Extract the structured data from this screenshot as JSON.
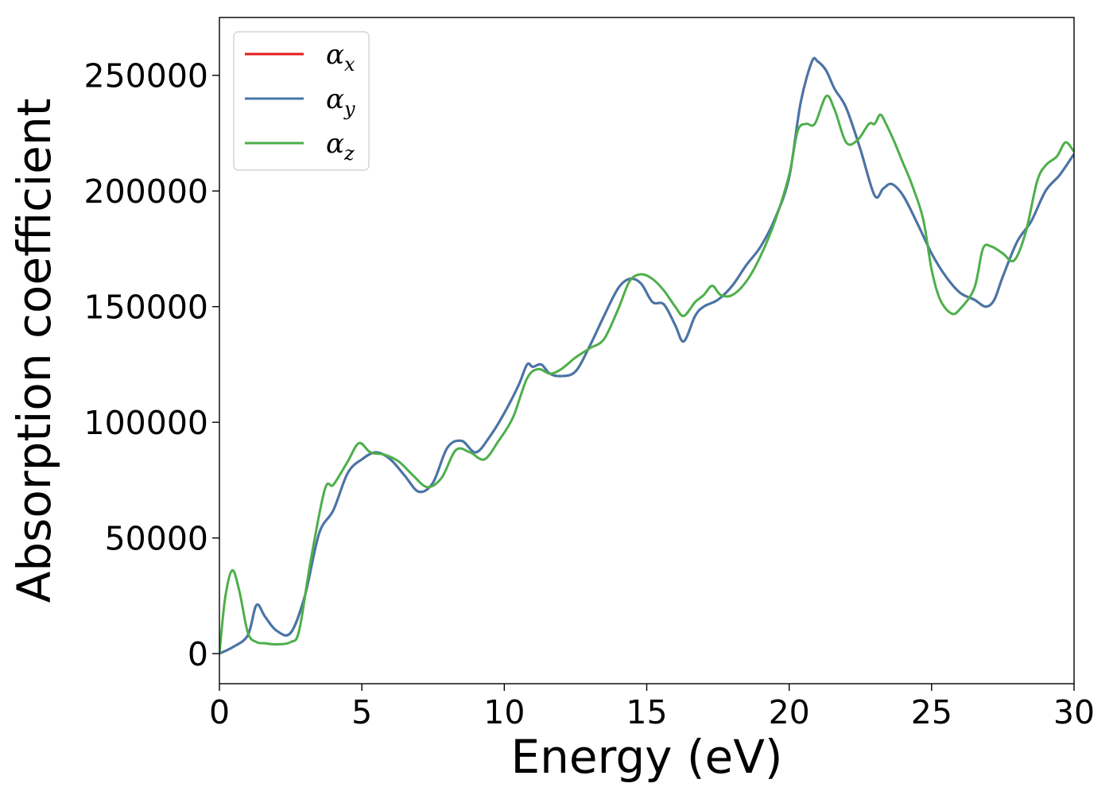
{
  "chart_data": {
    "type": "line",
    "xlabel": "Energy (eV)",
    "ylabel": "Absorption coefficient",
    "xlim": [
      0,
      30
    ],
    "ylim": [
      -13000,
      275000
    ],
    "xticks": [
      0,
      5,
      10,
      15,
      20,
      25,
      30
    ],
    "xtick_labels": [
      "0",
      "5",
      "10",
      "15",
      "20",
      "25",
      "30"
    ],
    "yticks": [
      0,
      50000,
      100000,
      150000,
      200000,
      250000
    ],
    "ytick_labels": [
      "0",
      "50000",
      "100000",
      "150000",
      "200000",
      "250000"
    ],
    "grid": false,
    "legend_position": "top-left",
    "series": [
      {
        "name": "α",
        "subscript": "x",
        "color": "#e41a1c",
        "x": [
          0,
          0.5,
          1.0,
          1.3,
          1.6,
          2.0,
          2.5,
          3.0,
          3.5,
          4.0,
          4.5,
          5.0,
          5.5,
          6.0,
          6.5,
          7.0,
          7.5,
          8.0,
          8.5,
          9.0,
          9.5,
          10.0,
          10.5,
          10.8,
          11.0,
          11.3,
          11.6,
          12.0,
          12.5,
          13.0,
          13.5,
          14.0,
          14.4,
          14.8,
          15.2,
          15.6,
          16.0,
          16.3,
          16.7,
          17.0,
          17.5,
          18.0,
          18.5,
          19.0,
          19.5,
          20.0,
          20.4,
          20.8,
          21.0,
          21.3,
          21.6,
          22.0,
          22.5,
          23.0,
          23.3,
          23.6,
          24.0,
          24.5,
          25.0,
          25.5,
          26.0,
          26.5,
          26.9,
          27.2,
          27.5,
          28.0,
          28.5,
          29.0,
          29.5,
          30.0
        ],
        "y": [
          0,
          3000,
          8000,
          21000,
          16000,
          10000,
          9000,
          25000,
          52000,
          62000,
          78000,
          84000,
          87000,
          84000,
          77000,
          70000,
          74000,
          89000,
          92000,
          87000,
          94000,
          104000,
          116000,
          125000,
          124000,
          125000,
          121000,
          120000,
          122000,
          133000,
          146000,
          158000,
          162000,
          160000,
          152000,
          151000,
          142000,
          135000,
          146000,
          150000,
          153000,
          159000,
          168000,
          176000,
          188000,
          206000,
          238000,
          256000,
          256000,
          252000,
          244000,
          236000,
          218000,
          198000,
          201000,
          203000,
          198000,
          186000,
          173000,
          163000,
          156000,
          153000,
          150000,
          153000,
          163000,
          178000,
          187000,
          200000,
          207000,
          216000
        ]
      },
      {
        "name": "α",
        "subscript": "y",
        "color": "#4477aa",
        "x": [
          0,
          0.5,
          1.0,
          1.3,
          1.6,
          2.0,
          2.5,
          3.0,
          3.5,
          4.0,
          4.5,
          5.0,
          5.5,
          6.0,
          6.5,
          7.0,
          7.5,
          8.0,
          8.5,
          9.0,
          9.5,
          10.0,
          10.5,
          10.8,
          11.0,
          11.3,
          11.6,
          12.0,
          12.5,
          13.0,
          13.5,
          14.0,
          14.4,
          14.8,
          15.2,
          15.6,
          16.0,
          16.3,
          16.7,
          17.0,
          17.5,
          18.0,
          18.5,
          19.0,
          19.5,
          20.0,
          20.4,
          20.8,
          21.0,
          21.3,
          21.6,
          22.0,
          22.5,
          23.0,
          23.3,
          23.6,
          24.0,
          24.5,
          25.0,
          25.5,
          26.0,
          26.5,
          26.9,
          27.2,
          27.5,
          28.0,
          28.5,
          29.0,
          29.5,
          30.0
        ],
        "y": [
          0,
          3000,
          8000,
          21000,
          16000,
          10000,
          9000,
          25000,
          52000,
          62000,
          78000,
          84000,
          87000,
          84000,
          77000,
          70000,
          74000,
          89000,
          92000,
          87000,
          94000,
          104000,
          116000,
          125000,
          124000,
          125000,
          121000,
          120000,
          122000,
          133000,
          146000,
          158000,
          162000,
          160000,
          152000,
          151000,
          142000,
          135000,
          146000,
          150000,
          153000,
          159000,
          168000,
          176000,
          188000,
          206000,
          238000,
          256000,
          256000,
          252000,
          244000,
          236000,
          218000,
          198000,
          201000,
          203000,
          198000,
          186000,
          173000,
          163000,
          156000,
          153000,
          150000,
          153000,
          163000,
          178000,
          187000,
          200000,
          207000,
          216000
        ]
      },
      {
        "name": "α",
        "subscript": "z",
        "color": "#4daf4a",
        "x": [
          0,
          0.2,
          0.45,
          0.7,
          1.0,
          1.3,
          1.6,
          2.0,
          2.5,
          2.8,
          3.2,
          3.7,
          4.0,
          4.5,
          4.9,
          5.3,
          5.8,
          6.3,
          6.8,
          7.3,
          7.8,
          8.3,
          8.8,
          9.3,
          9.8,
          10.3,
          10.8,
          11.2,
          11.6,
          12.0,
          12.5,
          13.0,
          13.5,
          14.0,
          14.4,
          14.8,
          15.2,
          15.6,
          16.0,
          16.3,
          16.7,
          17.0,
          17.3,
          17.6,
          18.0,
          18.5,
          19.0,
          19.5,
          20.0,
          20.3,
          20.6,
          20.9,
          21.3,
          21.6,
          22.0,
          22.4,
          22.8,
          23.0,
          23.2,
          23.4,
          23.7,
          24.0,
          24.3,
          24.7,
          25.0,
          25.3,
          25.7,
          26.0,
          26.5,
          26.8,
          27.1,
          27.5,
          27.9,
          28.3,
          28.7,
          29.0,
          29.4,
          29.7,
          30.0
        ],
        "y": [
          0,
          24000,
          36000,
          27000,
          9000,
          5000,
          4500,
          4000,
          5000,
          10000,
          40000,
          71000,
          73000,
          83000,
          91000,
          87000,
          86000,
          83000,
          77000,
          72000,
          76000,
          88000,
          87000,
          84000,
          92000,
          102000,
          119000,
          123000,
          121000,
          123000,
          128000,
          132000,
          136000,
          149000,
          161000,
          164000,
          162000,
          157000,
          150000,
          146000,
          152000,
          155000,
          159000,
          155000,
          155000,
          161000,
          172000,
          187000,
          207000,
          226000,
          229000,
          229000,
          241000,
          235000,
          221000,
          222000,
          229000,
          229000,
          233000,
          229000,
          221000,
          212000,
          203000,
          188000,
          166000,
          153000,
          147000,
          149000,
          158000,
          175000,
          176000,
          173000,
          170000,
          182000,
          204000,
          211000,
          215000,
          221000,
          217000
        ]
      }
    ]
  }
}
